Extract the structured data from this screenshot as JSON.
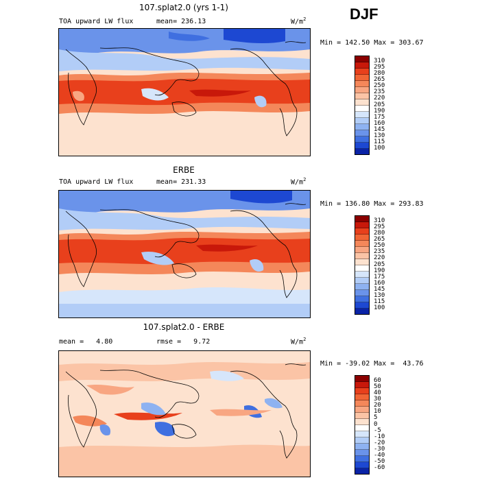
{
  "season": "DJF",
  "panels": [
    {
      "title": "107.splat2.0 (yrs 1-1)",
      "left_label": "TOA upward LW flux",
      "center_label": "mean= 236.13",
      "units": "W/m",
      "units_sup": "2",
      "minmax": "Min = 142.50 Max = 303.67",
      "colorbar": {
        "labels": [
          "310",
          "295",
          "280",
          "265",
          "250",
          "235",
          "220",
          "205",
          "190",
          "175",
          "160",
          "145",
          "130",
          "115",
          "100"
        ],
        "colors": [
          "#8b0000",
          "#c8180a",
          "#e8401c",
          "#f06535",
          "#f4875a",
          "#f8a682",
          "#fbc4a6",
          "#fde2cf",
          "#ffffff",
          "#d6e6fb",
          "#b2cdf7",
          "#8eb2f1",
          "#6a93ea",
          "#3f6fe0",
          "#1d48d2",
          "#0a23a6"
        ]
      }
    },
    {
      "title": "ERBE",
      "left_label": "TOA upward LW flux",
      "center_label": "mean= 231.33",
      "units": "W/m",
      "units_sup": "2",
      "minmax": "Min = 136.80 Max = 293.83",
      "colorbar": {
        "labels": [
          "310",
          "295",
          "280",
          "265",
          "250",
          "235",
          "220",
          "205",
          "190",
          "175",
          "160",
          "145",
          "130",
          "115",
          "100"
        ],
        "colors": [
          "#8b0000",
          "#c8180a",
          "#e8401c",
          "#f06535",
          "#f4875a",
          "#f8a682",
          "#fbc4a6",
          "#fde2cf",
          "#ffffff",
          "#d6e6fb",
          "#b2cdf7",
          "#8eb2f1",
          "#6a93ea",
          "#3f6fe0",
          "#1d48d2",
          "#0a23a6"
        ]
      }
    },
    {
      "title": "107.splat2.0 - ERBE",
      "left_label": "mean =   4.80",
      "center_label": "rmse =   9.72",
      "units": "W/m",
      "units_sup": "2",
      "minmax": "Min = -39.02 Max =  43.76",
      "colorbar": {
        "labels": [
          "60",
          "50",
          "40",
          "30",
          "20",
          "10",
          "5",
          "0",
          "-5",
          "-10",
          "-20",
          "-30",
          "-40",
          "-50",
          "-60"
        ],
        "colors": [
          "#8b0000",
          "#c8180a",
          "#e8401c",
          "#f06535",
          "#f4875a",
          "#f8a682",
          "#fbc4a6",
          "#fde2cf",
          "#ffffff",
          "#d6e6fb",
          "#b2cdf7",
          "#8eb2f1",
          "#6a93ea",
          "#3f6fe0",
          "#1d48d2",
          "#0a23a6"
        ]
      }
    }
  ]
}
